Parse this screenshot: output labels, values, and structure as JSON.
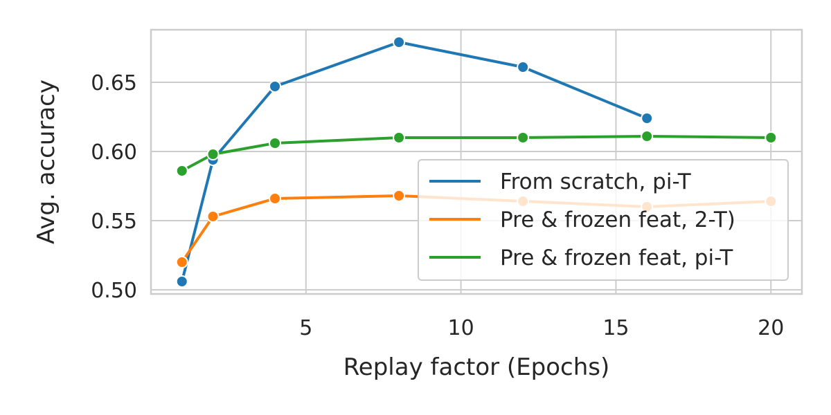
{
  "chart_data": {
    "type": "line",
    "xlabel": "Replay factor (Epochs)",
    "ylabel": "Avg. accuracy",
    "xlim": [
      0,
      21
    ],
    "ylim": [
      0.497,
      0.688
    ],
    "xticks": [
      5,
      10,
      15,
      20
    ],
    "yticks": [
      0.5,
      0.55,
      0.6,
      0.65
    ],
    "xtick_labels": [
      "5",
      "10",
      "15",
      "20"
    ],
    "ytick_labels": [
      "0.50",
      "0.55",
      "0.60",
      "0.65"
    ],
    "grid": true,
    "legend_position": "right",
    "series": [
      {
        "name": "From scratch, pi-T",
        "color": "#1f77b4",
        "x": [
          1,
          2,
          4,
          8,
          12,
          16
        ],
        "y": [
          0.506,
          0.594,
          0.647,
          0.679,
          0.661,
          0.624
        ]
      },
      {
        "name": "Pre & frozen feat, 2-T)",
        "color": "#ff7f0e",
        "x": [
          1,
          2,
          4,
          8,
          12,
          16,
          20
        ],
        "y": [
          0.52,
          0.553,
          0.566,
          0.568,
          0.564,
          0.56,
          0.564
        ]
      },
      {
        "name": "Pre & frozen feat, pi-T",
        "color": "#2ca02c",
        "x": [
          1,
          2,
          4,
          8,
          12,
          16,
          20
        ],
        "y": [
          0.586,
          0.598,
          0.606,
          0.61,
          0.61,
          0.611,
          0.61
        ]
      }
    ]
  }
}
